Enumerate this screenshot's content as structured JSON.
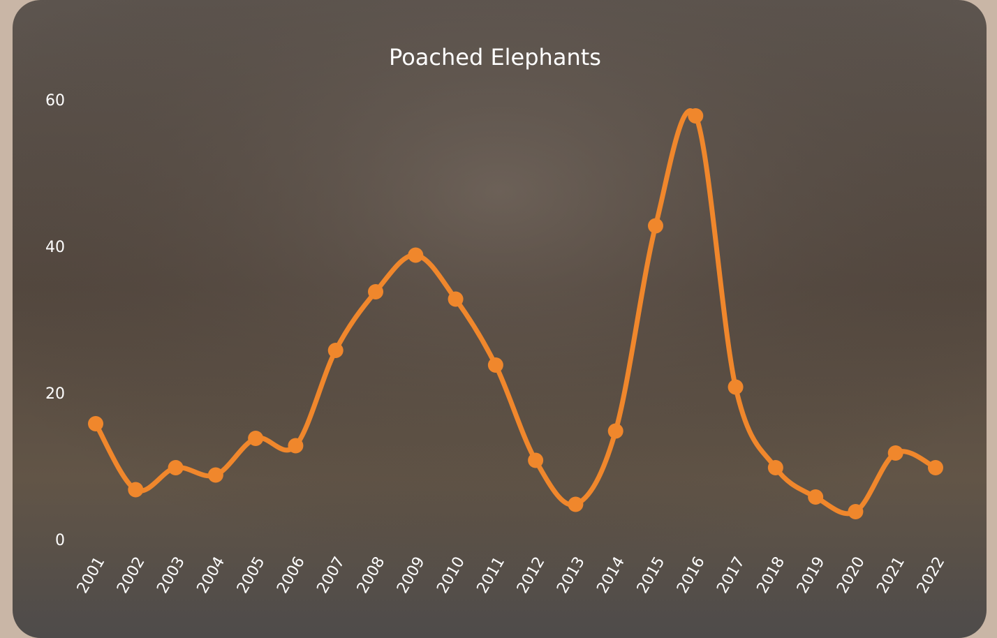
{
  "chart_data": {
    "type": "line",
    "title": "Poached Elephants",
    "categories": [
      "2001",
      "2002",
      "2003",
      "2004",
      "2005",
      "2006",
      "2007",
      "2008",
      "2009",
      "2010",
      "2011",
      "2012",
      "2013",
      "2014",
      "2015",
      "2016",
      "2017",
      "2018",
      "2019",
      "2020",
      "2021",
      "2022"
    ],
    "series": [
      {
        "name": "Poached Elephants",
        "color": "#f0872c",
        "values": [
          16,
          7,
          10,
          9,
          14,
          13,
          26,
          34,
          39,
          33,
          24,
          11,
          5,
          15,
          43,
          58,
          21,
          10,
          6,
          4,
          12,
          10
        ]
      }
    ],
    "ylim": [
      0,
      60
    ],
    "yticks": [
      0,
      20,
      40,
      60
    ],
    "grid": false,
    "smooth": true
  }
}
